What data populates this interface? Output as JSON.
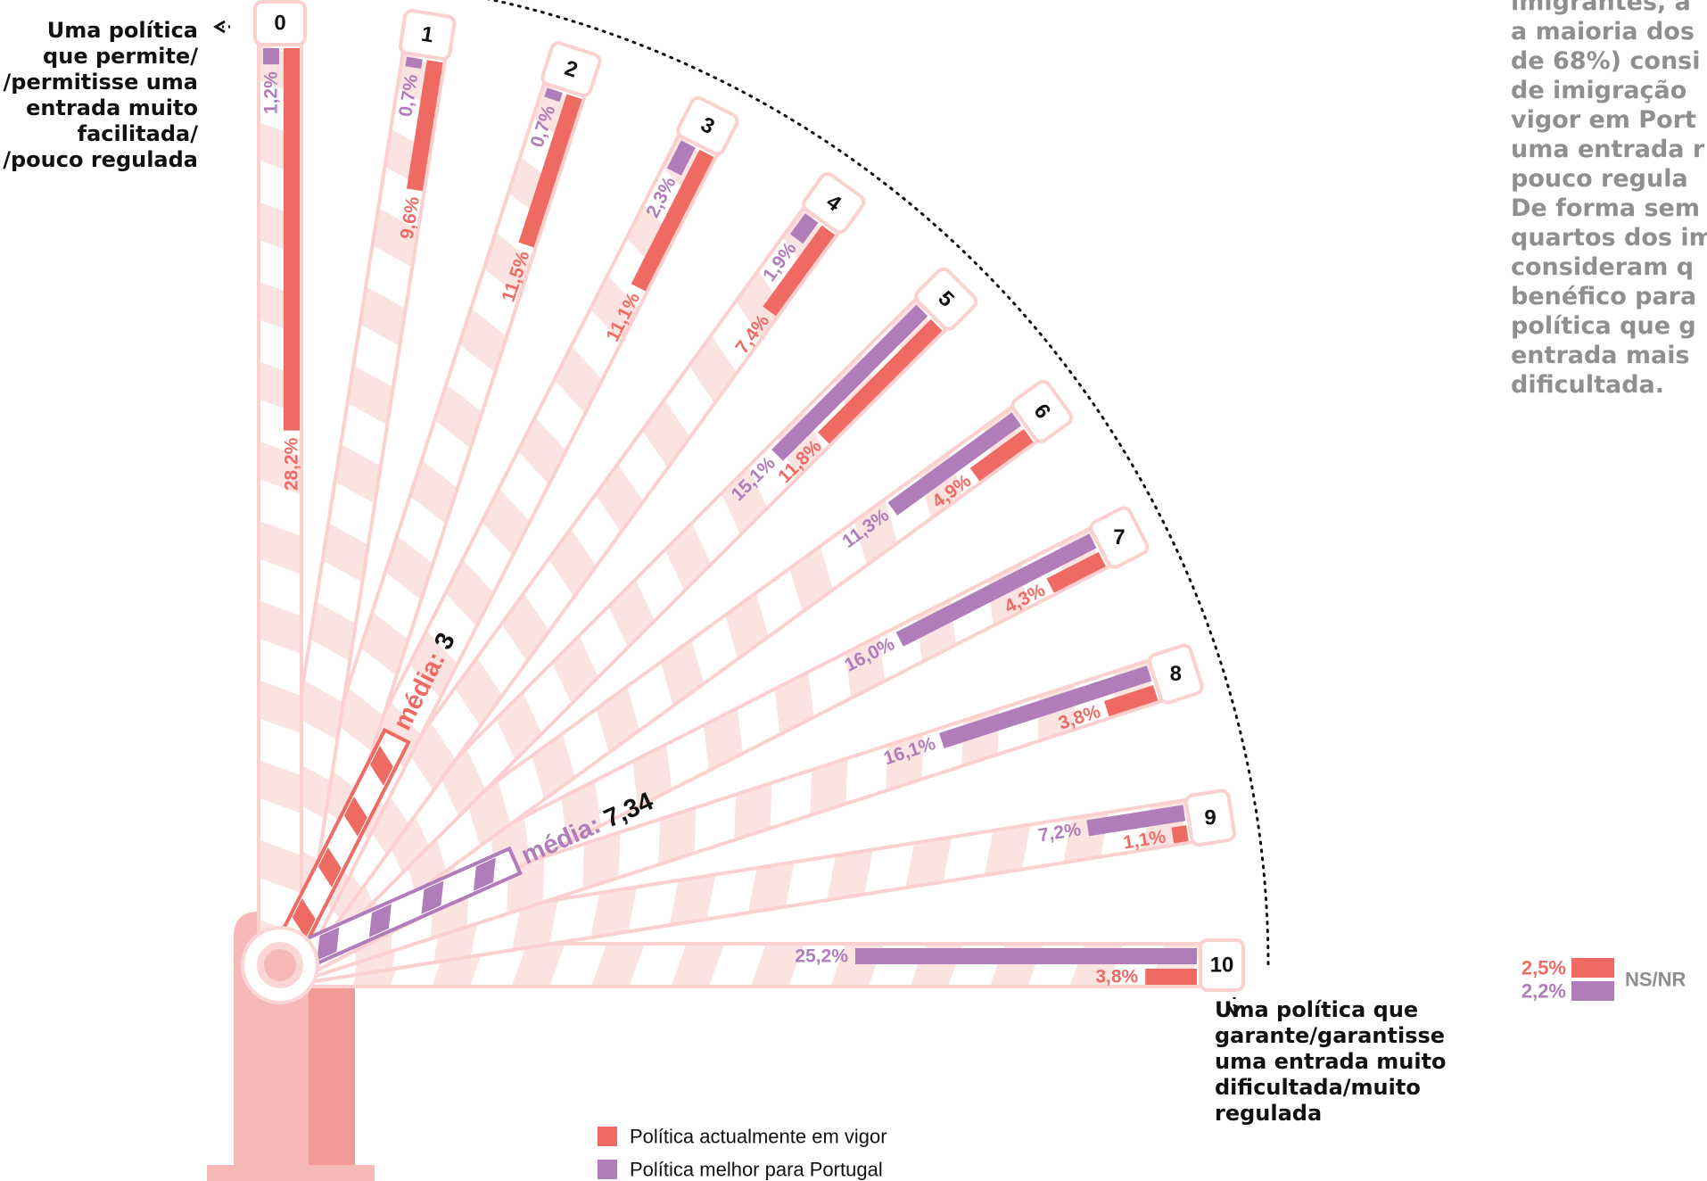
{
  "chart_data": {
    "type": "bar",
    "layout_style": "fan of boom-barrier bars, scale 0 to 10",
    "categories": [
      "0",
      "1",
      "2",
      "3",
      "4",
      "5",
      "6",
      "7",
      "8",
      "9",
      "10"
    ],
    "series": [
      {
        "name": "Política actualmente em vigor",
        "color": "#f06a64",
        "values": [
          28.2,
          9.6,
          11.5,
          11.1,
          7.4,
          11.8,
          4.9,
          4.3,
          3.8,
          1.1,
          3.8
        ],
        "labels": [
          "28,2%",
          "9,6%",
          "11,5%",
          "11,1%",
          "7,4%",
          "11,8%",
          "4,9%",
          "4,3%",
          "3,8%",
          "1,1%",
          "3,8%"
        ]
      },
      {
        "name": "Política melhor para Portugal",
        "color": "#b07cba",
        "values": [
          1.2,
          0.7,
          0.7,
          2.3,
          1.9,
          15.1,
          11.3,
          16.0,
          16.1,
          7.2,
          25.2
        ],
        "labels": [
          "1,2%",
          "0,7%",
          "0,7%",
          "2,3%",
          "1,9%",
          "15,1%",
          "11,3%",
          "16,0%",
          "16,1%",
          "7,2%",
          "25,2%"
        ]
      }
    ],
    "means": [
      {
        "series": "Política actualmente em vigor",
        "label": "média:",
        "value": 3,
        "value_text": "3"
      },
      {
        "series": "Política melhor para Portugal",
        "label": "média:",
        "value": 7.34,
        "value_text": "7,34"
      }
    ],
    "nsnr": {
      "label": "NS/NR",
      "values": [
        "2,5%",
        "2,2%"
      ]
    },
    "axis_low_label": [
      "Uma política",
      "que permite/",
      "/permitisse uma",
      "entrada muito",
      "facilitada/",
      "/pouco regulada"
    ],
    "axis_high_label": [
      "Uma política que",
      "garante/garantisse",
      "uma entrada muito",
      "dificultada/muito",
      "regulada"
    ],
    "legend_position": "bottom-center"
  },
  "note_lines": [
    "imigrantes, a",
    "a maioria dos",
    "de 68%) consi",
    "de imigração",
    "vigor em Port",
    "uma entrada r",
    "pouco regula",
    "De forma sem",
    "quartos dos im",
    "consideram q",
    "benéfico para",
    "política que g",
    "entrada mais",
    "dificultada."
  ],
  "colors": {
    "red": "#f06a64",
    "purple": "#b07cba",
    "pink_outline": "#fbd0cf",
    "pink_stripe": "#fbe1df",
    "note_gray": "#8f8f8f"
  },
  "icons": {
    "post": "barrier-post-icon",
    "hub": "barrier-pivot-icon"
  }
}
